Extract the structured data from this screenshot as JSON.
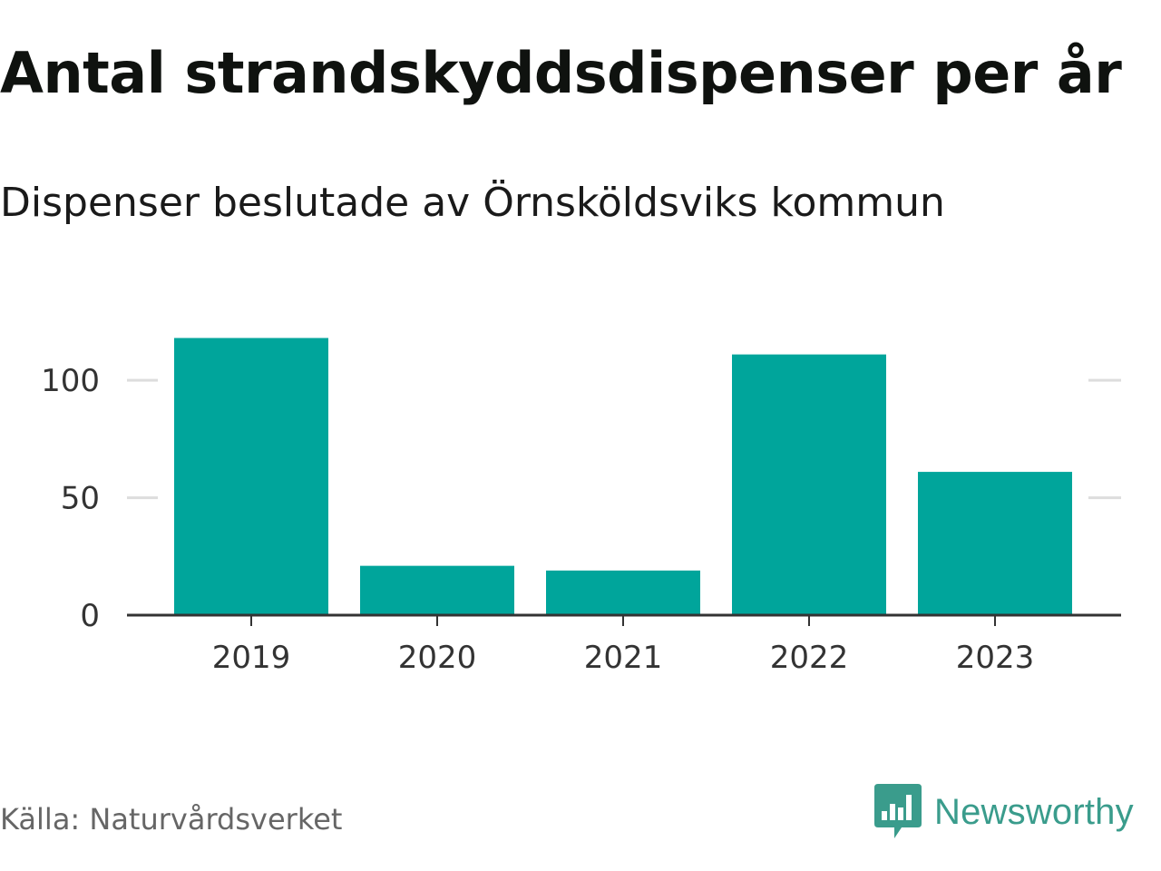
{
  "title": "Antal strandskyddsdispenser per år",
  "subtitle": "Dispenser beslutade av Örnsköldsviks kommun",
  "source": "Källa: Naturvårdsverket",
  "brand": {
    "name": "Newsworthy",
    "icon": "newsworthy-logo-icon",
    "color": "#3a9c8c"
  },
  "colors": {
    "bar": "#00a59b",
    "grid": "#dddddd",
    "axis": "#333333"
  },
  "chart_data": {
    "type": "bar",
    "title": "Antal strandskyddsdispenser per år",
    "subtitle": "Dispenser beslutade av Örnsköldsviks kommun",
    "categories": [
      "2019",
      "2020",
      "2021",
      "2022",
      "2023"
    ],
    "values": [
      118,
      21,
      19,
      111,
      61
    ],
    "xlabel": "",
    "ylabel": "",
    "ylim": [
      0,
      124
    ],
    "yticks": [
      0,
      50,
      100
    ],
    "ytick_labels": [
      "0",
      "50",
      "100"
    ],
    "grid": true,
    "legend": "none"
  }
}
